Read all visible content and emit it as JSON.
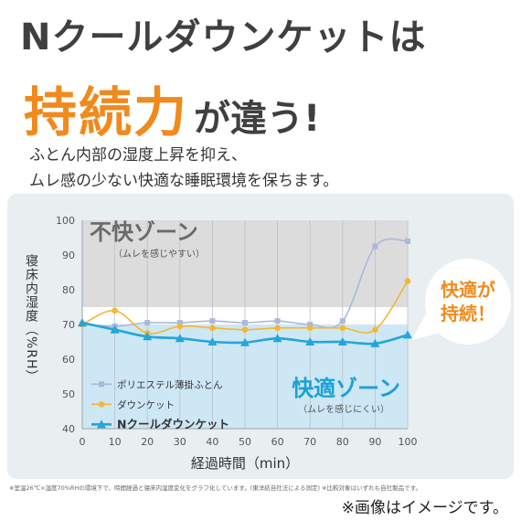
{
  "header": {
    "title_line1": "Nクールダウンケットは",
    "title_line2_highlight": "持続力",
    "title_line2_rest": "が違う!",
    "subtitle_line1": "ふとん内部の湿度上昇を抑え、",
    "subtitle_line2": "ムレ感の少ない快適な睡眠環境を保ちます。"
  },
  "chart_data": {
    "type": "line",
    "xlabel": "経過時間（min）",
    "ylabel": "寝床内湿度（%RH）",
    "xlim": [
      0,
      100
    ],
    "ylim": [
      40,
      100
    ],
    "x": [
      0,
      10,
      20,
      30,
      40,
      50,
      60,
      70,
      80,
      90,
      100
    ],
    "x_ticks": [
      "0",
      "10",
      "20",
      "30",
      "40",
      "50",
      "60",
      "70",
      "80",
      "90",
      "100"
    ],
    "y_ticks": [
      "40",
      "50",
      "60",
      "70",
      "80",
      "90",
      "100"
    ],
    "grid": "vertical",
    "legend_position": "bottom-left",
    "zones": [
      {
        "label": "不快ゾーン",
        "note": "（ムレを感じやすい）",
        "from": 75,
        "to": 100,
        "color": "#dcdcdc"
      },
      {
        "label": "快適ゾーン",
        "note": "（ムレを感じにくい）",
        "from": 40,
        "to": 70,
        "color": "#cde7f5"
      }
    ],
    "series": [
      {
        "name": "ポリエステル薄掛ふとん",
        "color": "#a9b8dc",
        "marker": "square",
        "values": [
          70,
          69.5,
          70.5,
          70.5,
          71,
          70.5,
          71,
          70,
          71,
          92.5,
          94
        ]
      },
      {
        "name": "ダウンケット",
        "color": "#f5b730",
        "marker": "circle",
        "values": [
          70,
          74,
          67.5,
          69.5,
          69,
          68.5,
          69,
          69,
          69,
          68.5,
          82.5
        ]
      },
      {
        "name": "Nクールダウンケット",
        "color": "#23a6d9",
        "marker": "triangle",
        "values": [
          70.5,
          68.5,
          66.5,
          66,
          65,
          64.8,
          66,
          65,
          65,
          64.5,
          67
        ]
      }
    ],
    "callout": "快適が持続！"
  },
  "footer": {
    "footnote": "※室温26℃×湿度70%RHの環境下で、時間経過と寝床内湿度変化をグラフ化しています。(東洋紡自社法による測定) ※比較対象はいずれも自社製品です。",
    "image_note": "※画像はイメージです。"
  },
  "colors": {
    "accent": "#f08a1c",
    "comfort": "#23a6d9",
    "comfort_zone": "#cde7f5",
    "discomfort_zone": "#dcdcdc"
  }
}
